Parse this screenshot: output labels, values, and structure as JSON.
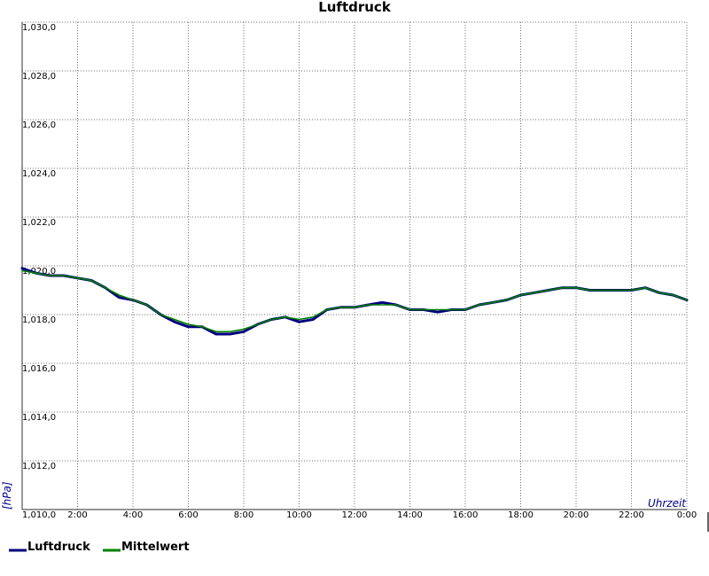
{
  "chart_data": {
    "type": "line",
    "title": "Luftdruck",
    "ylabel": "[hPa]",
    "xlabel": "Uhrzeit",
    "ylim": [
      1010,
      1030
    ],
    "yticks": [
      "1,010,0",
      "1,012,0",
      "1,014,0",
      "1,016,0",
      "1,018,0",
      "1,020,0",
      "1,022,0",
      "1,024,0",
      "1,026,0",
      "1,028,0",
      "1,030,0"
    ],
    "xlim": [
      0,
      24
    ],
    "xtick_values": [
      2,
      4,
      6,
      8,
      10,
      12,
      14,
      16,
      18,
      20,
      22,
      24
    ],
    "xticks": [
      "2:00",
      "4:00",
      "6:00",
      "8:00",
      "10:00",
      "12:00",
      "14:00",
      "16:00",
      "18:00",
      "20:00",
      "22:00",
      "0:00"
    ],
    "grid": true,
    "legend": "bottom-left",
    "x": [
      0,
      0.5,
      1,
      1.5,
      2,
      2.5,
      3,
      3.5,
      4,
      4.5,
      5,
      5.5,
      6,
      6.5,
      7,
      7.5,
      8,
      8.5,
      9,
      9.5,
      10,
      10.5,
      11,
      11.5,
      12,
      12.5,
      13,
      13.5,
      14,
      14.5,
      15,
      15.5,
      16,
      16.5,
      17,
      17.5,
      18,
      18.5,
      19,
      19.5,
      20,
      20.5,
      21,
      21.5,
      22,
      22.5,
      23,
      23.5,
      24
    ],
    "series": [
      {
        "name": "Luftdruck",
        "color": "#00007f",
        "values": [
          1019.9,
          1019.7,
          1019.6,
          1019.6,
          1019.5,
          1019.4,
          1019.1,
          1018.7,
          1018.6,
          1018.4,
          1018.0,
          1017.7,
          1017.5,
          1017.5,
          1017.2,
          1017.2,
          1017.3,
          1017.6,
          1017.8,
          1017.9,
          1017.7,
          1017.8,
          1018.2,
          1018.3,
          1018.3,
          1018.4,
          1018.5,
          1018.4,
          1018.2,
          1018.2,
          1018.1,
          1018.2,
          1018.2,
          1018.4,
          1018.5,
          1018.6,
          1018.8,
          1018.9,
          1019.0,
          1019.1,
          1019.1,
          1019.0,
          1019.0,
          1019.0,
          1019.0,
          1019.1,
          1018.9,
          1018.8,
          1018.6
        ]
      },
      {
        "name": "Mittelwert",
        "color": "#008000",
        "values": [
          1019.8,
          1019.7,
          1019.6,
          1019.6,
          1019.5,
          1019.4,
          1019.1,
          1018.8,
          1018.6,
          1018.4,
          1018.0,
          1017.8,
          1017.6,
          1017.5,
          1017.3,
          1017.3,
          1017.4,
          1017.6,
          1017.8,
          1017.9,
          1017.8,
          1017.9,
          1018.2,
          1018.3,
          1018.3,
          1018.4,
          1018.4,
          1018.4,
          1018.2,
          1018.2,
          1018.2,
          1018.2,
          1018.2,
          1018.4,
          1018.5,
          1018.6,
          1018.8,
          1018.9,
          1019.0,
          1019.1,
          1019.1,
          1019.0,
          1019.0,
          1019.0,
          1019.0,
          1019.1,
          1018.9,
          1018.8,
          1018.6
        ]
      }
    ]
  }
}
